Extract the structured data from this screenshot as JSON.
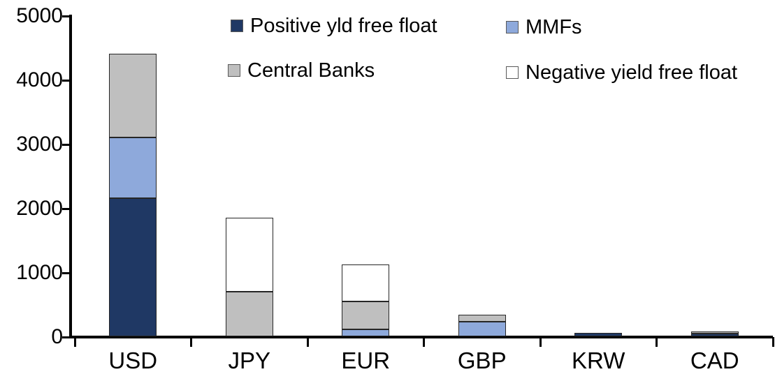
{
  "chart_data": {
    "type": "bar",
    "stacked": true,
    "title": "",
    "xlabel": "",
    "ylabel": "",
    "categories": [
      "USD",
      "JPY",
      "EUR",
      "GBP",
      "KRW",
      "CAD"
    ],
    "series": [
      {
        "name": "Positive yld free float",
        "color": "#1F3864",
        "values": [
          2150,
          0,
          0,
          0,
          50,
          45
        ]
      },
      {
        "name": "MMFs",
        "color": "#8EA9DB",
        "values": [
          950,
          0,
          110,
          230,
          0,
          0
        ]
      },
      {
        "name": "Central Banks",
        "color": "#BFBFBF",
        "values": [
          1300,
          700,
          430,
          110,
          0,
          35
        ]
      },
      {
        "name": "Negative yield free float",
        "color": "#FFFFFF",
        "values": [
          0,
          1150,
          580,
          0,
          0,
          0
        ]
      }
    ],
    "category_totals": [
      4400,
      1850,
      1120,
      340,
      50,
      80
    ],
    "y_axis": {
      "min": 0,
      "max": 5000,
      "step": 1000,
      "tick_labels": [
        "0",
        "1000",
        "2000",
        "3000",
        "4000",
        "5000"
      ]
    },
    "legend_position": "top",
    "grid": false,
    "colors": {
      "positive_yld_free_float": "#1F3864",
      "mmfs": "#8EA9DB",
      "central_banks": "#BFBFBF",
      "negative_yield_free_float": "#FFFFFF",
      "axis": "#000000"
    }
  }
}
